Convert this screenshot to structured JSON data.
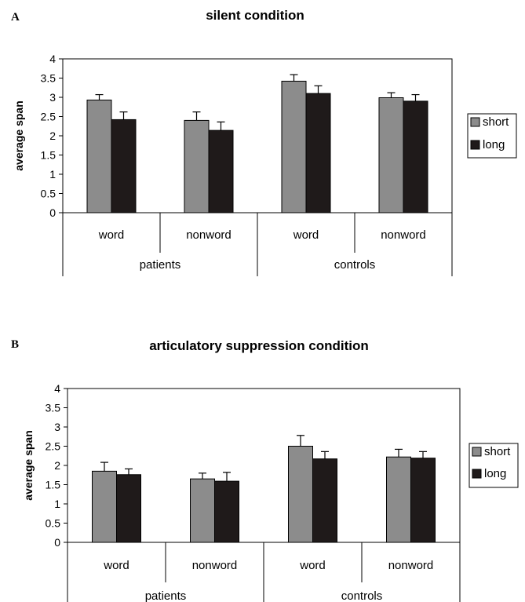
{
  "chart_data": [
    {
      "type": "bar",
      "panel_label": "A",
      "title": "silent condition",
      "xlabel": "",
      "ylabel": "average span",
      "ylim": [
        0,
        4
      ],
      "yticks": [
        "0",
        "0.5",
        "1",
        "1.5",
        "2",
        "2.5",
        "3",
        "3.5",
        "4"
      ],
      "groups": [
        "patients",
        "controls"
      ],
      "categories": [
        "word",
        "nonword",
        "word",
        "nonword"
      ],
      "series": [
        {
          "name": "short",
          "color": "#8c8c8c",
          "values": [
            2.93,
            2.4,
            3.42,
            2.99
          ],
          "errors": [
            0.14,
            0.22,
            0.17,
            0.13
          ]
        },
        {
          "name": "long",
          "color": "#1f1a1a",
          "values": [
            2.42,
            2.14,
            3.1,
            2.9
          ],
          "errors": [
            0.2,
            0.22,
            0.2,
            0.17
          ]
        }
      ],
      "legend": "right"
    },
    {
      "type": "bar",
      "panel_label": "B",
      "title": "articulatory suppression condition",
      "xlabel": "",
      "ylabel": "average span",
      "ylim": [
        0,
        4
      ],
      "yticks": [
        "0",
        "0.5",
        "1",
        "1.5",
        "2",
        "2.5",
        "3",
        "3.5",
        "4"
      ],
      "groups": [
        "patients",
        "controls"
      ],
      "categories": [
        "word",
        "nonword",
        "word",
        "nonword"
      ],
      "series": [
        {
          "name": "short",
          "color": "#8c8c8c",
          "values": [
            1.85,
            1.65,
            2.5,
            2.22
          ],
          "errors": [
            0.23,
            0.15,
            0.28,
            0.2
          ]
        },
        {
          "name": "long",
          "color": "#1f1a1a",
          "values": [
            1.76,
            1.59,
            2.17,
            2.19
          ],
          "errors": [
            0.15,
            0.23,
            0.19,
            0.17
          ]
        }
      ],
      "legend": "right"
    }
  ]
}
